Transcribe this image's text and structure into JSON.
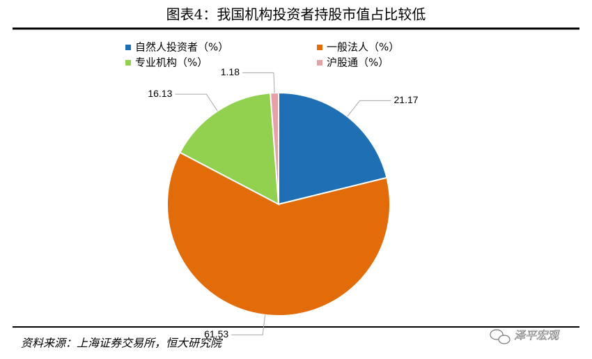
{
  "chart_data": {
    "type": "pie",
    "title": "图表4：我国机构投资者持股市值占比较低",
    "series": [
      {
        "name": "自然人投资者（%）",
        "color": "#1f6fb5",
        "values": [
          21.17
        ]
      },
      {
        "name": "一般法人（%）",
        "color": "#e36c0a",
        "values": [
          61.53
        ]
      },
      {
        "name": "专业机构（%）",
        "color": "#92d050",
        "values": [
          16.13
        ]
      },
      {
        "name": "沪股通（%）",
        "color": "#e6a1a6",
        "values": [
          1.18
        ]
      }
    ],
    "source": "资料来源：上海证券交易所，恒大研究院",
    "watermark": "泽平宏观"
  }
}
